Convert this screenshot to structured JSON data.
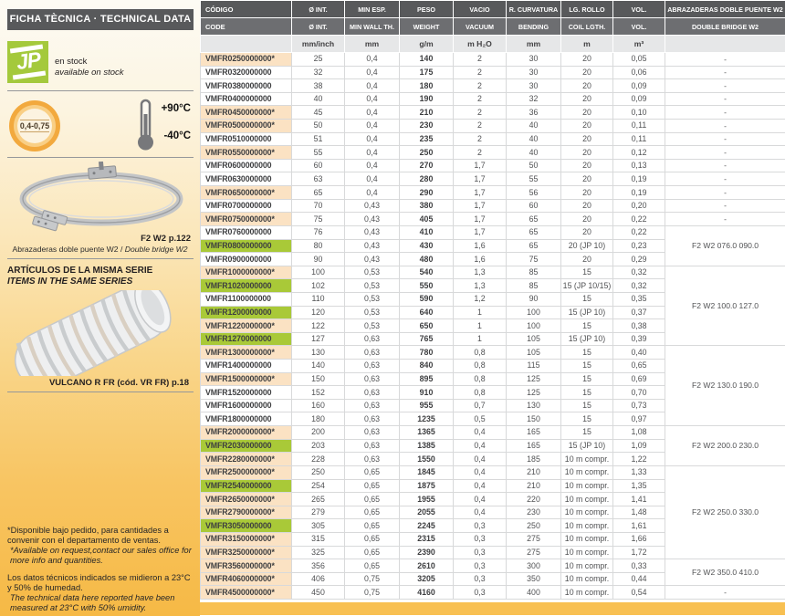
{
  "sidebar": {
    "header": "FICHA TÈCNICA · TECHNICAL DATA",
    "logo_text": "JP",
    "stock_line1": "en stock",
    "stock_line2": "available on stock",
    "badge": "0,4-0,75",
    "temp_high": "+90°C",
    "temp_low": "-40°C",
    "clamp_ref": "F2 W2 p.122",
    "clamp_caption_es": "Abrazaderas doble puente W2",
    "clamp_caption_sep": " / ",
    "clamp_caption_en": "Double bridge W2",
    "same_series_es": "ARTÍCULOS DE LA MISMA SERIE",
    "same_series_en": "ITEMS IN THE SAME SERIES",
    "hose_ref": "VULCANO R FR (cód. VR FR) p.18",
    "footnote1_es": "*Disponible bajo pedido, para cantidades a convenir con el departamento de ventas.",
    "footnote1_en": "*Available on request,contact our sales office for more info and quantities.",
    "footnote2_es": "Los datos técnicos indicados se midieron a 23°C y 50% de humedad.",
    "footnote2_en": "The technical data here reported have been measured at 23°C with 50% umidity."
  },
  "colors": {
    "header_dark": "#58595b",
    "header_mid": "#6d6e71",
    "units_bg": "#e6e7e8",
    "highlight_green": "#a9c938",
    "highlight_peach": "#fbe2c3",
    "jp_green": "#a4c93c",
    "accent_orange": "#f2a93e",
    "bottom_bar": "#f8c052"
  },
  "table": {
    "header_row1": [
      "CÓDIGO",
      "Ø INT.",
      "MIN ESP.",
      "PESO",
      "VACIO",
      "R. CURVATURA",
      "LG. ROLLO",
      "VOL.",
      "ABRAZADERAS DOBLE PUENTE W2"
    ],
    "header_row2": [
      "CODE",
      "Ø INT.",
      "MIN WALL TH.",
      "WEIGHT",
      "VACUUM",
      "BENDING",
      "COIL LGTH.",
      "VOL.",
      "DOUBLE BRIDGE W2"
    ],
    "header_units": [
      "",
      "mm/inch",
      "mm",
      "g/m",
      "m H₂O",
      "mm",
      "m",
      "m³",
      ""
    ],
    "rows": [
      {
        "code": "VMFR0250000000*",
        "hl": "peach",
        "vals": [
          "25",
          "0,4",
          "140",
          "2",
          "30",
          "20",
          "0,05"
        ],
        "clamp": "-",
        "span": 1
      },
      {
        "code": "VMFR0320000000",
        "hl": "white",
        "vals": [
          "32",
          "0,4",
          "175",
          "2",
          "30",
          "20",
          "0,06"
        ],
        "clamp": "-",
        "span": 1
      },
      {
        "code": "VMFR0380000000",
        "hl": "white",
        "vals": [
          "38",
          "0,4",
          "180",
          "2",
          "30",
          "20",
          "0,09"
        ],
        "clamp": "-",
        "span": 1
      },
      {
        "code": "VMFR0400000000",
        "hl": "white",
        "vals": [
          "40",
          "0,4",
          "190",
          "2",
          "32",
          "20",
          "0,09"
        ],
        "clamp": "-",
        "span": 1
      },
      {
        "code": "VMFR0450000000*",
        "hl": "peach",
        "vals": [
          "45",
          "0,4",
          "210",
          "2",
          "36",
          "20",
          "0,10"
        ],
        "clamp": "-",
        "span": 1
      },
      {
        "code": "VMFR0500000000*",
        "hl": "peach",
        "vals": [
          "50",
          "0,4",
          "230",
          "2",
          "40",
          "20",
          "0,11"
        ],
        "clamp": "-",
        "span": 1
      },
      {
        "code": "VMFR0510000000",
        "hl": "white",
        "vals": [
          "51",
          "0,4",
          "235",
          "2",
          "40",
          "20",
          "0,11"
        ],
        "clamp": "-",
        "span": 1
      },
      {
        "code": "VMFR0550000000*",
        "hl": "peach",
        "vals": [
          "55",
          "0,4",
          "250",
          "2",
          "40",
          "20",
          "0,12"
        ],
        "clamp": "-",
        "span": 1
      },
      {
        "code": "VMFR0600000000",
        "hl": "white",
        "vals": [
          "60",
          "0,4",
          "270",
          "1,7",
          "50",
          "20",
          "0,13"
        ],
        "clamp": "-",
        "span": 1
      },
      {
        "code": "VMFR0630000000",
        "hl": "white",
        "vals": [
          "63",
          "0,4",
          "280",
          "1,7",
          "55",
          "20",
          "0,19"
        ],
        "clamp": "-",
        "span": 1
      },
      {
        "code": "VMFR0650000000*",
        "hl": "peach",
        "vals": [
          "65",
          "0,4",
          "290",
          "1,7",
          "56",
          "20",
          "0,19"
        ],
        "clamp": "-",
        "span": 1
      },
      {
        "code": "VMFR0700000000",
        "hl": "white",
        "vals": [
          "70",
          "0,43",
          "380",
          "1,7",
          "60",
          "20",
          "0,20"
        ],
        "clamp": "-",
        "span": 1
      },
      {
        "code": "VMFR0750000000*",
        "hl": "peach",
        "vals": [
          "75",
          "0,43",
          "405",
          "1,7",
          "65",
          "20",
          "0,22"
        ],
        "clamp": "-",
        "span": 1
      },
      {
        "code": "VMFR0760000000",
        "hl": "white",
        "vals": [
          "76",
          "0,43",
          "410",
          "1,7",
          "65",
          "20",
          "0,22"
        ],
        "clamp": "F2 W2 076.0 090.0",
        "span": 3
      },
      {
        "code": "VMFR0800000000",
        "hl": "green",
        "vals": [
          "80",
          "0,43",
          "430",
          "1,6",
          "65",
          "20 (JP 10)",
          "0,23"
        ],
        "clamp": null
      },
      {
        "code": "VMFR0900000000",
        "hl": "white",
        "vals": [
          "90",
          "0,43",
          "480",
          "1,6",
          "75",
          "20",
          "0,29"
        ],
        "clamp": null
      },
      {
        "code": "VMFR1000000000*",
        "hl": "peach",
        "vals": [
          "100",
          "0,53",
          "540",
          "1,3",
          "85",
          "15",
          "0,32"
        ],
        "clamp": "F2 W2 100.0 127.0",
        "span": 6
      },
      {
        "code": "VMFR1020000000",
        "hl": "green",
        "vals": [
          "102",
          "0,53",
          "550",
          "1,3",
          "85",
          "15 (JP 10/15)",
          "0,32"
        ],
        "clamp": null
      },
      {
        "code": "VMFR1100000000",
        "hl": "white",
        "vals": [
          "110",
          "0,53",
          "590",
          "1,2",
          "90",
          "15",
          "0,35"
        ],
        "clamp": null
      },
      {
        "code": "VMFR1200000000",
        "hl": "green",
        "vals": [
          "120",
          "0,53",
          "640",
          "1",
          "100",
          "15 (JP 10)",
          "0,37"
        ],
        "clamp": null
      },
      {
        "code": "VMFR1220000000*",
        "hl": "peach",
        "vals": [
          "122",
          "0,53",
          "650",
          "1",
          "100",
          "15",
          "0,38"
        ],
        "clamp": null
      },
      {
        "code": "VMFR1270000000",
        "hl": "green",
        "vals": [
          "127",
          "0,63",
          "765",
          "1",
          "105",
          "15 (JP 10)",
          "0,39"
        ],
        "clamp": null
      },
      {
        "code": "VMFR1300000000*",
        "hl": "peach",
        "vals": [
          "130",
          "0,63",
          "780",
          "0,8",
          "105",
          "15",
          "0,40"
        ],
        "clamp": "F2 W2 130.0 190.0",
        "span": 6
      },
      {
        "code": "VMFR1400000000",
        "hl": "white",
        "vals": [
          "140",
          "0,63",
          "840",
          "0,8",
          "115",
          "15",
          "0,65"
        ],
        "clamp": null
      },
      {
        "code": "VMFR1500000000*",
        "hl": "peach",
        "vals": [
          "150",
          "0,63",
          "895",
          "0,8",
          "125",
          "15",
          "0,69"
        ],
        "clamp": null
      },
      {
        "code": "VMFR1520000000",
        "hl": "white",
        "vals": [
          "152",
          "0,63",
          "910",
          "0,8",
          "125",
          "15",
          "0,70"
        ],
        "clamp": null
      },
      {
        "code": "VMFR1600000000",
        "hl": "white",
        "vals": [
          "160",
          "0,63",
          "955",
          "0,7",
          "130",
          "15",
          "0,73"
        ],
        "clamp": null
      },
      {
        "code": "VMFR1800000000",
        "hl": "white",
        "vals": [
          "180",
          "0,63",
          "1235",
          "0,5",
          "150",
          "15",
          "0,97"
        ],
        "clamp": null
      },
      {
        "code": "VMFR2000000000*",
        "hl": "peach",
        "vals": [
          "200",
          "0,63",
          "1365",
          "0,4",
          "165",
          "15",
          "1,08"
        ],
        "clamp": "F2 W2 200.0 230.0",
        "span": 3
      },
      {
        "code": "VMFR2030000000",
        "hl": "green",
        "vals": [
          "203",
          "0,63",
          "1385",
          "0,4",
          "165",
          "15 (JP 10)",
          "1,09"
        ],
        "clamp": null
      },
      {
        "code": "VMFR2280000000*",
        "hl": "peach",
        "vals": [
          "228",
          "0,63",
          "1550",
          "0,4",
          "185",
          "10 m compr.",
          "1,22"
        ],
        "clamp": null
      },
      {
        "code": "VMFR2500000000*",
        "hl": "peach",
        "vals": [
          "250",
          "0,65",
          "1845",
          "0,4",
          "210",
          "10 m compr.",
          "1,33"
        ],
        "clamp": "F2 W2 250.0 330.0",
        "span": 7
      },
      {
        "code": "VMFR2540000000",
        "hl": "green",
        "vals": [
          "254",
          "0,65",
          "1875",
          "0,4",
          "210",
          "10 m compr.",
          "1,35"
        ],
        "clamp": null
      },
      {
        "code": "VMFR2650000000*",
        "hl": "peach",
        "vals": [
          "265",
          "0,65",
          "1955",
          "0,4",
          "220",
          "10 m compr.",
          "1,41"
        ],
        "clamp": null
      },
      {
        "code": "VMFR2790000000*",
        "hl": "peach",
        "vals": [
          "279",
          "0,65",
          "2055",
          "0,4",
          "230",
          "10 m compr.",
          "1,48"
        ],
        "clamp": null
      },
      {
        "code": "VMFR3050000000",
        "hl": "green",
        "vals": [
          "305",
          "0,65",
          "2245",
          "0,3",
          "250",
          "10 m compr.",
          "1,61"
        ],
        "clamp": null
      },
      {
        "code": "VMFR3150000000*",
        "hl": "peach",
        "vals": [
          "315",
          "0,65",
          "2315",
          "0,3",
          "275",
          "10 m compr.",
          "1,66"
        ],
        "clamp": null
      },
      {
        "code": "VMFR3250000000*",
        "hl": "peach",
        "vals": [
          "325",
          "0,65",
          "2390",
          "0,3",
          "275",
          "10 m compr.",
          "1,72"
        ],
        "clamp": null
      },
      {
        "code": "VMFR3560000000*",
        "hl": "peach",
        "vals": [
          "356",
          "0,65",
          "2610",
          "0,3",
          "300",
          "10 m compr.",
          "0,33"
        ],
        "clamp": "F2 W2 350.0 410.0",
        "span": 2
      },
      {
        "code": "VMFR4060000000*",
        "hl": "peach",
        "vals": [
          "406",
          "0,75",
          "3205",
          "0,3",
          "350",
          "10 m compr.",
          "0,44"
        ],
        "clamp": null
      },
      {
        "code": "VMFR4500000000*",
        "hl": "peach",
        "vals": [
          "450",
          "0,75",
          "4160",
          "0,3",
          "400",
          "10 m compr.",
          "0,54"
        ],
        "clamp": "-",
        "span": 1
      }
    ]
  }
}
